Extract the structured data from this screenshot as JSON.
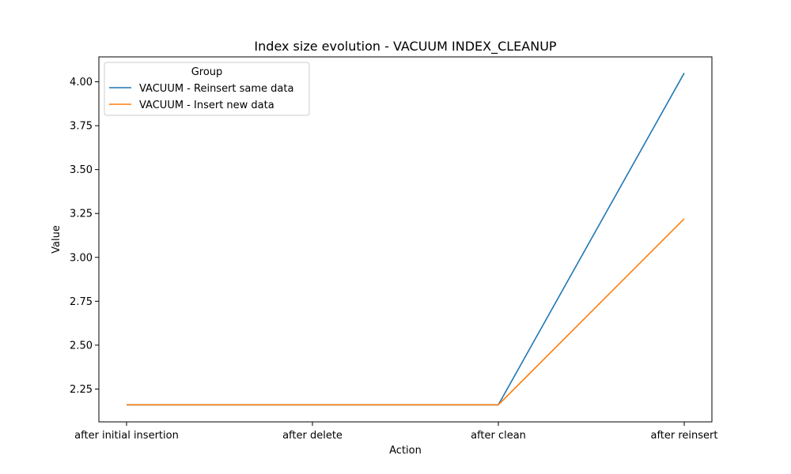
{
  "chart_data": {
    "type": "line",
    "title": "Index size evolution - VACUUM INDEX_CLEANUP",
    "xlabel": "Action",
    "ylabel": "Value",
    "categories": [
      "after initial insertion",
      "after delete",
      "after clean",
      "after reinsert"
    ],
    "yticks": [
      "2.25",
      "2.50",
      "2.75",
      "3.00",
      "3.25",
      "3.50",
      "3.75",
      "4.00"
    ],
    "ylim": [
      2.063,
      4.142
    ],
    "grid": false,
    "legend": {
      "title": "Group",
      "placement": "top-left"
    },
    "series": [
      {
        "name": "VACUUM - Reinsert same data",
        "color": "#1f77b4",
        "values": [
          2.16,
          2.16,
          2.16,
          4.05
        ]
      },
      {
        "name": "VACUUM - Insert new data",
        "color": "#ff7f0e",
        "values": [
          2.16,
          2.16,
          2.16,
          3.22
        ]
      }
    ]
  }
}
